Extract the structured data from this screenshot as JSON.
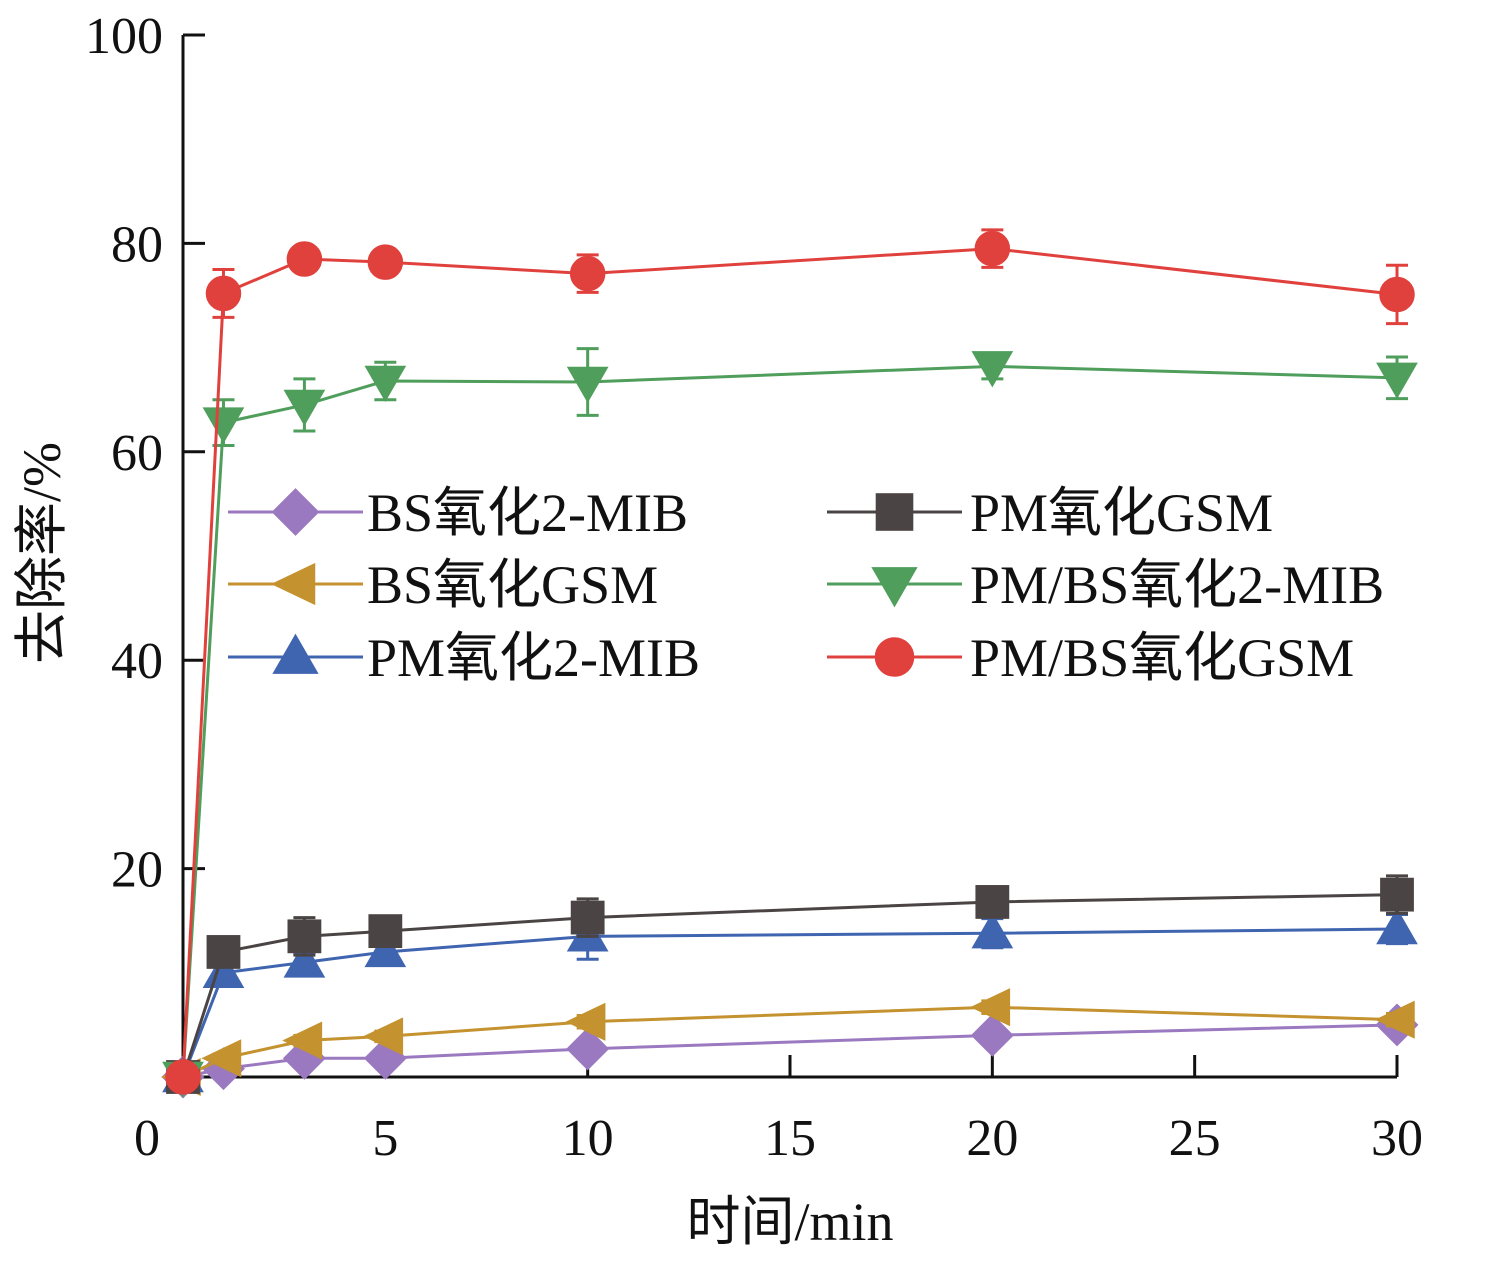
{
  "chart_data": {
    "type": "line",
    "xlabel": "时间/min",
    "ylabel": "去除率/%",
    "xlim": [
      0,
      30
    ],
    "ylim": [
      0,
      100
    ],
    "xticks": [
      0,
      5,
      10,
      15,
      20,
      25,
      30
    ],
    "yticks": [
      20,
      40,
      60,
      80,
      100
    ],
    "grid": false,
    "legend_placement": "center, two columns",
    "x": [
      0,
      1,
      3,
      5,
      10,
      20,
      30
    ],
    "series": [
      {
        "name": "BS氧化2-MIB",
        "color": "#9b79c0",
        "marker": "diamond",
        "values": [
          0,
          0.8,
          1.8,
          1.8,
          2.7,
          4.0,
          5.0
        ],
        "errors": [
          0,
          0.4,
          0.5,
          0.5,
          0.6,
          0.6,
          0.6
        ]
      },
      {
        "name": "BS氧化GSM",
        "color": "#c4922e",
        "marker": "triangle-left",
        "values": [
          0,
          1.8,
          3.5,
          3.9,
          5.3,
          6.7,
          5.5
        ],
        "errors": [
          0,
          0.4,
          0.5,
          0.5,
          0.6,
          0.6,
          0.6
        ]
      },
      {
        "name": "PM氧化2-MIB",
        "color": "#4065b0",
        "marker": "triangle-up",
        "values": [
          0,
          10.0,
          11.0,
          12.0,
          13.5,
          13.8,
          14.2
        ],
        "errors": [
          0,
          0.8,
          0.8,
          0.8,
          2.2,
          1.4,
          1.4
        ]
      },
      {
        "name": "PM氧化GSM",
        "color": "#4a4444",
        "marker": "square",
        "values": [
          0,
          12.0,
          13.5,
          14.0,
          15.3,
          16.8,
          17.5
        ],
        "errors": [
          0,
          0.8,
          1.8,
          0.8,
          1.8,
          1.2,
          1.8
        ]
      },
      {
        "name": "PM/BS氧化2-MIB",
        "color": "#4f9e5c",
        "marker": "triangle-down",
        "values": [
          0,
          62.8,
          64.5,
          66.8,
          66.7,
          68.2,
          67.1
        ],
        "errors": [
          0,
          2.2,
          2.5,
          1.8,
          3.2,
          1.2,
          2.0
        ]
      },
      {
        "name": "PM/BS氧化GSM",
        "color": "#e0413d",
        "marker": "circle",
        "values": [
          0,
          75.2,
          78.5,
          78.2,
          77.1,
          79.5,
          75.1
        ],
        "errors": [
          0,
          2.3,
          1.0,
          0.8,
          1.8,
          1.8,
          2.8
        ]
      }
    ]
  }
}
